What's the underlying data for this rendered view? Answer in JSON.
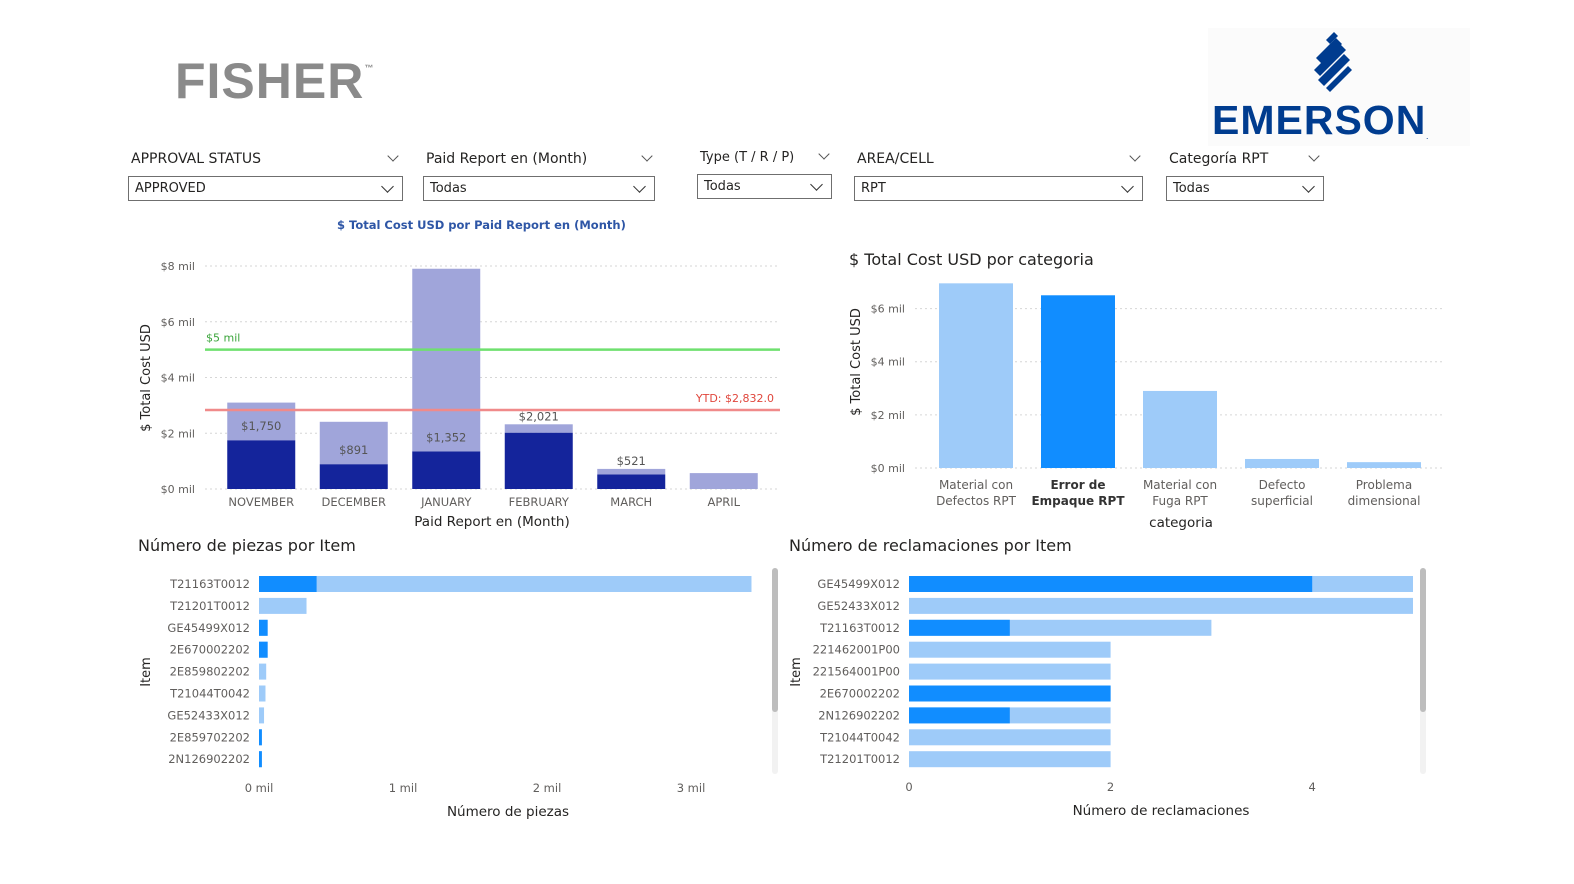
{
  "logos": {
    "left": "FISHER",
    "left_tm": "™",
    "right": "EMERSON",
    "right_tm": "."
  },
  "slicers": [
    {
      "title": "APPROVAL STATUS",
      "value": "APPROVED"
    },
    {
      "title": "Paid Report en (Month)",
      "value": "Todas"
    },
    {
      "title": "Type (T / R / P)",
      "value": "Todas"
    },
    {
      "title": "AREA/CELL",
      "value": "RPT"
    },
    {
      "title": "Categoría RPT",
      "value": "Todas"
    }
  ],
  "colors": {
    "dark_navy": "#14249b",
    "lavender": "#a0a5da",
    "light_blue": "#9ecbf9",
    "bright_blue": "#118dff",
    "target_green": "#6fe06f",
    "ytd_red": "#f08a8a",
    "emerson_blue": "#003c8f"
  },
  "chart_data": [
    {
      "type": "bar",
      "title": "$ Total Cost USD por Paid Report en (Month)",
      "xlabel": "Paid Report en (Month)",
      "ylabel": "$ Total Cost USD",
      "categories": [
        "NOVEMBER",
        "DECEMBER",
        "JANUARY",
        "FEBRUARY",
        "MARCH",
        "APRIL"
      ],
      "ylim": [
        0,
        8000
      ],
      "yticks": [
        "$0 mil",
        "$2 mil",
        "$4 mil",
        "$6 mil",
        "$8 mil"
      ],
      "series": [
        {
          "values": [
            1750,
            891,
            1352,
            2021,
            521,
            0
          ],
          "color": "#14249b"
        },
        {
          "values": [
            1350,
            1520,
            6550,
            300,
            200,
            570
          ],
          "color": "#a0a5da"
        }
      ],
      "data_labels": [
        "$1,750",
        "$891",
        "$1,352",
        "$2,021",
        "$521",
        ""
      ],
      "reference_lines": [
        {
          "value": 5000,
          "label": "$5 mil",
          "color": "#6fe06f"
        },
        {
          "value": 2832,
          "label": "YTD: $2,832.0",
          "color": "#f08a8a"
        }
      ],
      "grid": true,
      "legend": "none"
    },
    {
      "type": "bar",
      "title": "$ Total Cost USD por categoria",
      "xlabel": "categoria",
      "ylabel": "$ Total Cost USD",
      "categories": [
        [
          "Material con",
          "Defectos RPT"
        ],
        [
          "Error de",
          "Empaque RPT"
        ],
        [
          "Material con",
          "Fuga RPT"
        ],
        [
          "Defecto",
          "superficial"
        ],
        [
          "Problema",
          "dimensional"
        ]
      ],
      "values": [
        6950,
        6500,
        2900,
        340,
        220
      ],
      "highlight_index": 1,
      "ylim": [
        0,
        7000
      ],
      "yticks": [
        "$0 mil",
        "$2 mil",
        "$4 mil",
        "$6 mil"
      ],
      "grid": true,
      "legend": "none"
    },
    {
      "type": "bar",
      "orientation": "horizontal",
      "title": "Número de piezas por Item",
      "xlabel": "Número de piezas",
      "ylabel": "Item",
      "categories": [
        "T21163T0012",
        "T21201T0012",
        "GE45499X012",
        "2E670002202",
        "2E859802202",
        "T21044T0042",
        "GE52433X012",
        "2E859702202",
        "2N126902202"
      ],
      "highlight_values": [
        400,
        0,
        60,
        60,
        0,
        0,
        0,
        20,
        20
      ],
      "values": [
        3420,
        330,
        60,
        60,
        50,
        45,
        35,
        20,
        20
      ],
      "xlim": [
        0,
        3500
      ],
      "xticks": [
        "0 mil",
        "1 mil",
        "2 mil",
        "3 mil"
      ],
      "legend": "none"
    },
    {
      "type": "bar",
      "orientation": "horizontal",
      "title": "Número de reclamaciones por Item",
      "xlabel": "Número de reclamaciones",
      "ylabel": "Item",
      "categories": [
        "GE45499X012",
        "GE52433X012",
        "T21163T0012",
        "221462001P00",
        "221564001P00",
        "2E670002202",
        "2N126902202",
        "T21044T0042",
        "T21201T0012"
      ],
      "highlight_values": [
        4,
        0,
        1,
        0,
        0,
        2,
        1,
        0,
        0
      ],
      "values": [
        5,
        5,
        3,
        2,
        2,
        2,
        2,
        2,
        2
      ],
      "xlim": [
        0,
        5
      ],
      "xticks": [
        "0",
        "2",
        "4"
      ],
      "legend": "none"
    }
  ]
}
